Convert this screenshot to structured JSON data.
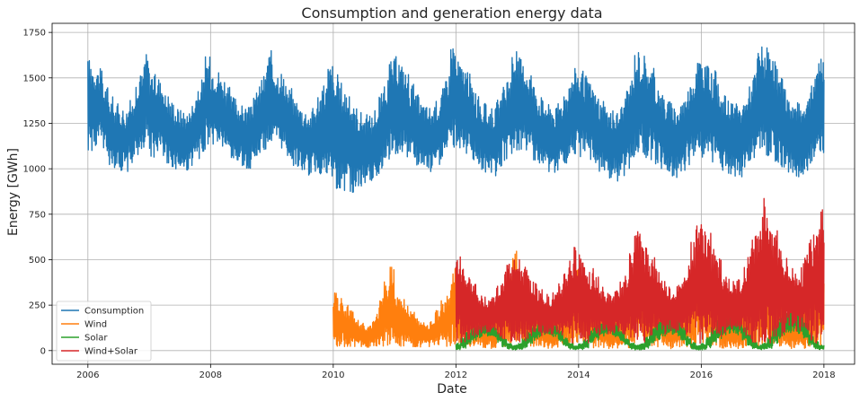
{
  "chart_data": {
    "type": "line",
    "title": "Consumption and generation energy data",
    "xlabel": "Date",
    "ylabel": "Energy [GWh]",
    "x_range": [
      "2005-06-01",
      "2018-07-01"
    ],
    "ylim": [
      -75,
      1800
    ],
    "x_ticks": [
      "2006",
      "2008",
      "2010",
      "2012",
      "2014",
      "2016",
      "2018"
    ],
    "y_ticks": [
      0,
      250,
      500,
      750,
      1000,
      1250,
      1500,
      1750
    ],
    "grid": true,
    "legend_position": "lower-left",
    "sampling": "monthly",
    "series": [
      {
        "name": "Consumption",
        "color": "#1f77b4",
        "start": "2006-01",
        "low": [
          1090,
          1110,
          1130,
          1090,
          1020,
          1000,
          990,
          980,
          1020,
          1060,
          1100,
          1140,
          1060,
          1080,
          1070,
          1030,
          1000,
          990,
          980,
          980,
          1010,
          1050,
          1090,
          1120,
          1120,
          1120,
          1100,
          1060,
          1030,
          1020,
          1010,
          1000,
          1030,
          1070,
          1100,
          1110,
          1100,
          1100,
          1080,
          1050,
          1010,
          990,
          980,
          960,
          970,
          960,
          920,
          900,
          870,
          890,
          880,
          860,
          880,
          900,
          910,
          920,
          960,
          1000,
          1050,
          1080,
          1080,
          1080,
          1060,
          1030,
          1000,
          990,
          980,
          980,
          1000,
          1040,
          1080,
          1110,
          1110,
          1100,
          1080,
          1040,
          1000,
          980,
          960,
          950,
          990,
          1040,
          1080,
          1100,
          1100,
          1080,
          1060,
          1040,
          1000,
          980,
          970,
          960,
          990,
          1030,
          1070,
          1080,
          1060,
          1060,
          1040,
          1010,
          980,
          960,
          940,
          930,
          960,
          1000,
          1050,
          1070,
          1070,
          1050,
          1040,
          1010,
          980,
          970,
          960,
          950,
          980,
          1020,
          1060,
          1080,
          1060,
          1050,
          1030,
          1010,
          990,
          970,
          960,
          950,
          980,
          1020,
          1050,
          1070,
          1070,
          1060,
          1040,
          1010,
          990,
          970,
          960,
          950,
          980,
          1020,
          1060,
          1080
        ],
        "high": [
          1610,
          1580,
          1550,
          1460,
          1400,
          1360,
          1340,
          1330,
          1380,
          1450,
          1530,
          1640,
          1550,
          1520,
          1490,
          1420,
          1380,
          1340,
          1330,
          1320,
          1370,
          1430,
          1500,
          1620,
          1570,
          1550,
          1510,
          1450,
          1400,
          1370,
          1350,
          1340,
          1390,
          1460,
          1520,
          1650,
          1580,
          1550,
          1510,
          1450,
          1390,
          1350,
          1330,
          1320,
          1360,
          1430,
          1490,
          1590,
          1520,
          1490,
          1460,
          1400,
          1350,
          1320,
          1300,
          1300,
          1340,
          1420,
          1490,
          1600,
          1620,
          1580,
          1540,
          1470,
          1410,
          1370,
          1350,
          1340,
          1380,
          1450,
          1530,
          1710,
          1600,
          1570,
          1530,
          1460,
          1400,
          1360,
          1340,
          1340,
          1380,
          1450,
          1520,
          1650,
          1620,
          1590,
          1550,
          1480,
          1410,
          1380,
          1360,
          1340,
          1380,
          1440,
          1500,
          1560,
          1540,
          1510,
          1480,
          1420,
          1370,
          1340,
          1320,
          1320,
          1360,
          1430,
          1510,
          1660,
          1640,
          1600,
          1560,
          1490,
          1420,
          1380,
          1360,
          1350,
          1390,
          1450,
          1520,
          1620,
          1600,
          1570,
          1540,
          1470,
          1410,
          1380,
          1360,
          1350,
          1390,
          1460,
          1540,
          1690,
          1680,
          1640,
          1590,
          1510,
          1440,
          1390,
          1370,
          1360,
          1400,
          1460,
          1530,
          1660
        ]
      },
      {
        "name": "Wind",
        "color": "#ff7f0e",
        "start": "2010-01",
        "low": [
          20,
          20,
          20,
          20,
          15,
          15,
          15,
          15,
          20,
          20,
          20,
          20,
          20,
          20,
          20,
          15,
          15,
          15,
          15,
          15,
          20,
          20,
          20,
          20,
          20,
          20,
          20,
          15,
          15,
          12,
          12,
          12,
          15,
          20,
          20,
          20,
          20,
          20,
          15,
          15,
          12,
          12,
          12,
          12,
          15,
          15,
          20,
          20,
          20,
          20,
          15,
          15,
          12,
          10,
          10,
          12,
          15,
          15,
          20,
          20,
          20,
          20,
          15,
          12,
          10,
          10,
          10,
          12,
          15,
          15,
          20,
          20,
          20,
          20,
          15,
          12,
          10,
          10,
          10,
          10,
          12,
          15,
          20,
          20,
          20,
          20,
          15,
          12,
          10,
          10,
          10,
          10,
          12,
          15,
          20,
          20
        ],
        "high": [
          330,
          290,
          250,
          220,
          180,
          150,
          140,
          160,
          200,
          290,
          380,
          490,
          330,
          300,
          260,
          220,
          180,
          160,
          150,
          170,
          220,
          280,
          310,
          450,
          420,
          380,
          330,
          290,
          230,
          200,
          180,
          190,
          250,
          330,
          410,
          560,
          380,
          340,
          300,
          260,
          200,
          170,
          160,
          170,
          230,
          310,
          390,
          470,
          410,
          380,
          330,
          280,
          220,
          190,
          170,
          180,
          240,
          330,
          420,
          560,
          490,
          450,
          390,
          320,
          250,
          210,
          190,
          200,
          260,
          350,
          430,
          560,
          470,
          430,
          380,
          310,
          250,
          210,
          190,
          200,
          260,
          340,
          420,
          470,
          420,
          390,
          340,
          290,
          230,
          200,
          180,
          190,
          250,
          330,
          410,
          450
        ]
      },
      {
        "name": "Solar",
        "color": "#2ca02c",
        "start": "2012-01",
        "low": [
          5,
          10,
          30,
          50,
          70,
          80,
          80,
          70,
          45,
          20,
          8,
          4,
          5,
          10,
          35,
          55,
          75,
          85,
          85,
          75,
          50,
          25,
          8,
          4,
          5,
          10,
          35,
          55,
          75,
          85,
          85,
          75,
          50,
          25,
          8,
          4,
          5,
          12,
          35,
          60,
          80,
          90,
          90,
          80,
          55,
          25,
          8,
          4,
          5,
          12,
          40,
          65,
          85,
          95,
          95,
          85,
          55,
          25,
          10,
          5,
          5,
          12,
          40,
          65,
          85,
          95,
          95,
          85,
          55,
          25,
          10,
          5
        ],
        "high": [
          40,
          70,
          100,
          130,
          140,
          150,
          140,
          130,
          100,
          70,
          40,
          30,
          40,
          70,
          110,
          140,
          165,
          175,
          170,
          150,
          110,
          70,
          40,
          30,
          40,
          70,
          110,
          140,
          160,
          170,
          165,
          150,
          110,
          70,
          40,
          30,
          40,
          80,
          120,
          160,
          185,
          200,
          195,
          175,
          130,
          80,
          45,
          30,
          40,
          80,
          130,
          170,
          200,
          215,
          210,
          185,
          140,
          90,
          45,
          30,
          40,
          80,
          140,
          180,
          220,
          245,
          240,
          210,
          160,
          100,
          50,
          30
        ]
      },
      {
        "name": "Wind+Solar",
        "color": "#d62728",
        "start": "2012-01",
        "low": [
          40,
          40,
          60,
          70,
          80,
          90,
          90,
          90,
          70,
          50,
          40,
          40,
          40,
          40,
          60,
          70,
          80,
          90,
          90,
          90,
          70,
          50,
          40,
          40,
          40,
          40,
          60,
          70,
          80,
          90,
          90,
          90,
          70,
          50,
          40,
          40,
          40,
          40,
          60,
          75,
          85,
          95,
          95,
          90,
          70,
          50,
          40,
          40,
          40,
          40,
          60,
          75,
          85,
          95,
          95,
          90,
          70,
          50,
          40,
          40,
          40,
          40,
          60,
          75,
          90,
          100,
          100,
          95,
          75,
          50,
          40,
          40
        ],
        "high": [
          530,
          480,
          420,
          380,
          330,
          300,
          300,
          310,
          360,
          450,
          500,
          580,
          500,
          470,
          420,
          380,
          340,
          310,
          300,
          320,
          370,
          450,
          520,
          570,
          560,
          520,
          460,
          410,
          350,
          320,
          310,
          330,
          380,
          470,
          540,
          670,
          640,
          590,
          520,
          460,
          400,
          360,
          340,
          360,
          420,
          510,
          600,
          740,
          700,
          650,
          580,
          510,
          440,
          400,
          380,
          400,
          460,
          560,
          660,
          760,
          850,
          780,
          690,
          600,
          510,
          460,
          440,
          460,
          530,
          640,
          730,
          820
        ]
      }
    ]
  }
}
